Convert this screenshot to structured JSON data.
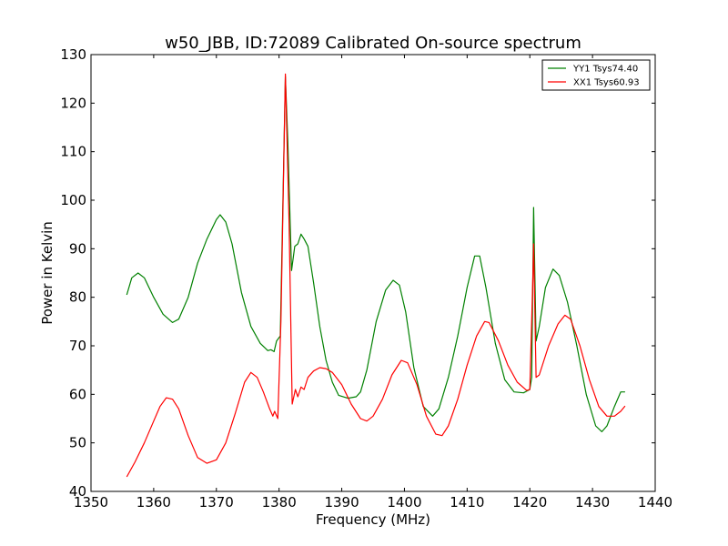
{
  "chart_data": {
    "type": "line",
    "title": "w50_JBB, ID:72089 Calibrated On-source spectrum",
    "xlabel": "Frequency (MHz)",
    "ylabel": "Power in Kelvin",
    "xlim": [
      1350,
      1440
    ],
    "ylim": [
      40,
      130
    ],
    "x_ticks": [
      "1350",
      "1360",
      "1370",
      "1380",
      "1390",
      "1400",
      "1410",
      "1420",
      "1430",
      "1440"
    ],
    "y_ticks": [
      "40",
      "50",
      "60",
      "70",
      "80",
      "90",
      "100",
      "110",
      "120",
      "130"
    ],
    "grid": false,
    "legend_position": "top-right",
    "series": [
      {
        "name": "YY1 Tsys74.40",
        "color": "#008000",
        "points": [
          [
            1355.7,
            80.5
          ],
          [
            1356.5,
            84.0
          ],
          [
            1357.5,
            85.0
          ],
          [
            1358.5,
            84.0
          ],
          [
            1360,
            80.0
          ],
          [
            1361.5,
            76.5
          ],
          [
            1363,
            74.8
          ],
          [
            1364,
            75.5
          ],
          [
            1365.5,
            80.0
          ],
          [
            1367,
            87.0
          ],
          [
            1368.5,
            92.0
          ],
          [
            1370,
            96.0
          ],
          [
            1370.6,
            97.0
          ],
          [
            1371.5,
            95.5
          ],
          [
            1372.5,
            91.0
          ],
          [
            1374,
            81.0
          ],
          [
            1375.5,
            74.0
          ],
          [
            1377,
            70.5
          ],
          [
            1378.2,
            69.0
          ],
          [
            1378.7,
            69.2
          ],
          [
            1379.2,
            68.8
          ],
          [
            1379.6,
            71.0
          ],
          [
            1380.2,
            72.0
          ],
          [
            1381.0,
            125.5
          ],
          [
            1381.4,
            112.0
          ],
          [
            1382.0,
            85.5
          ],
          [
            1382.5,
            90.5
          ],
          [
            1383.0,
            91.0
          ],
          [
            1383.5,
            93.0
          ],
          [
            1384.0,
            92.0
          ],
          [
            1384.6,
            90.5
          ],
          [
            1385.5,
            83.0
          ],
          [
            1386.5,
            74.0
          ],
          [
            1387.5,
            67.0
          ],
          [
            1388.5,
            62.5
          ],
          [
            1389.5,
            59.8
          ],
          [
            1391,
            59.2
          ],
          [
            1392.3,
            59.5
          ],
          [
            1393,
            60.5
          ],
          [
            1394,
            65.0
          ],
          [
            1395.5,
            75.0
          ],
          [
            1397,
            81.5
          ],
          [
            1398.2,
            83.5
          ],
          [
            1399.2,
            82.5
          ],
          [
            1400.2,
            77.0
          ],
          [
            1401.5,
            65.5
          ],
          [
            1403,
            57.5
          ],
          [
            1404.5,
            55.5
          ],
          [
            1405.5,
            57.0
          ],
          [
            1407,
            63.5
          ],
          [
            1408.5,
            72.0
          ],
          [
            1410,
            82.0
          ],
          [
            1411.2,
            88.5
          ],
          [
            1412.0,
            88.5
          ],
          [
            1413,
            82.0
          ],
          [
            1414.5,
            70.5
          ],
          [
            1416,
            63.0
          ],
          [
            1417.5,
            60.5
          ],
          [
            1419,
            60.3
          ],
          [
            1420.0,
            61.0
          ],
          [
            1420.3,
            63.5
          ],
          [
            1420.6,
            98.5
          ],
          [
            1421.0,
            71.0
          ],
          [
            1421.5,
            74.0
          ],
          [
            1422.5,
            82.0
          ],
          [
            1423.7,
            85.8
          ],
          [
            1424.7,
            84.5
          ],
          [
            1426,
            79.0
          ],
          [
            1427.5,
            70.0
          ],
          [
            1429,
            60.0
          ],
          [
            1430.5,
            53.5
          ],
          [
            1431.5,
            52.3
          ],
          [
            1432.3,
            53.5
          ],
          [
            1433.5,
            57.5
          ],
          [
            1434.5,
            60.5
          ],
          [
            1435.2,
            60.5
          ]
        ]
      },
      {
        "name": "XX1 Tsys60.93",
        "color": "#ff0000",
        "points": [
          [
            1355.7,
            43.0
          ],
          [
            1357,
            46.0
          ],
          [
            1358.5,
            50.0
          ],
          [
            1360,
            54.5
          ],
          [
            1361,
            57.5
          ],
          [
            1362,
            59.3
          ],
          [
            1363,
            59.0
          ],
          [
            1364,
            57.0
          ],
          [
            1365.5,
            51.5
          ],
          [
            1367,
            47.0
          ],
          [
            1368.5,
            45.8
          ],
          [
            1370,
            46.5
          ],
          [
            1371.5,
            50.0
          ],
          [
            1373,
            56.0
          ],
          [
            1374.5,
            62.5
          ],
          [
            1375.5,
            64.5
          ],
          [
            1376.5,
            63.5
          ],
          [
            1377.5,
            60.5
          ],
          [
            1378.5,
            57.0
          ],
          [
            1379.0,
            55.5
          ],
          [
            1379.3,
            56.5
          ],
          [
            1379.8,
            55.0
          ],
          [
            1380.3,
            75.0
          ],
          [
            1381.0,
            126.0
          ],
          [
            1381.6,
            95.0
          ],
          [
            1382.1,
            58.0
          ],
          [
            1382.6,
            61.0
          ],
          [
            1383.0,
            59.5
          ],
          [
            1383.5,
            61.5
          ],
          [
            1384.0,
            61.0
          ],
          [
            1384.6,
            63.5
          ],
          [
            1385.5,
            64.8
          ],
          [
            1386.5,
            65.5
          ],
          [
            1387.5,
            65.3
          ],
          [
            1388.5,
            64.5
          ],
          [
            1390,
            62.0
          ],
          [
            1391.5,
            58.0
          ],
          [
            1393,
            55.0
          ],
          [
            1394,
            54.5
          ],
          [
            1395,
            55.5
          ],
          [
            1396.5,
            59.0
          ],
          [
            1398,
            64.0
          ],
          [
            1399.5,
            67.0
          ],
          [
            1400.5,
            66.5
          ],
          [
            1402,
            62.0
          ],
          [
            1403.5,
            55.5
          ],
          [
            1405,
            51.8
          ],
          [
            1406,
            51.5
          ],
          [
            1407,
            53.5
          ],
          [
            1408.5,
            59.0
          ],
          [
            1410,
            66.0
          ],
          [
            1411.5,
            72.0
          ],
          [
            1412.8,
            75.0
          ],
          [
            1413.5,
            74.8
          ],
          [
            1415,
            71.0
          ],
          [
            1416.5,
            66.0
          ],
          [
            1418,
            62.5
          ],
          [
            1419.5,
            60.8
          ],
          [
            1420.0,
            61.0
          ],
          [
            1420.5,
            85.0
          ],
          [
            1420.6,
            91.0
          ],
          [
            1421.0,
            63.5
          ],
          [
            1421.5,
            64.0
          ],
          [
            1423,
            70.0
          ],
          [
            1424.5,
            74.5
          ],
          [
            1425.6,
            76.3
          ],
          [
            1426.5,
            75.5
          ],
          [
            1428,
            70.0
          ],
          [
            1429.5,
            63.0
          ],
          [
            1431,
            57.5
          ],
          [
            1432.3,
            55.5
          ],
          [
            1433.5,
            55.5
          ],
          [
            1434.5,
            56.5
          ],
          [
            1435.2,
            57.6
          ]
        ]
      }
    ]
  }
}
